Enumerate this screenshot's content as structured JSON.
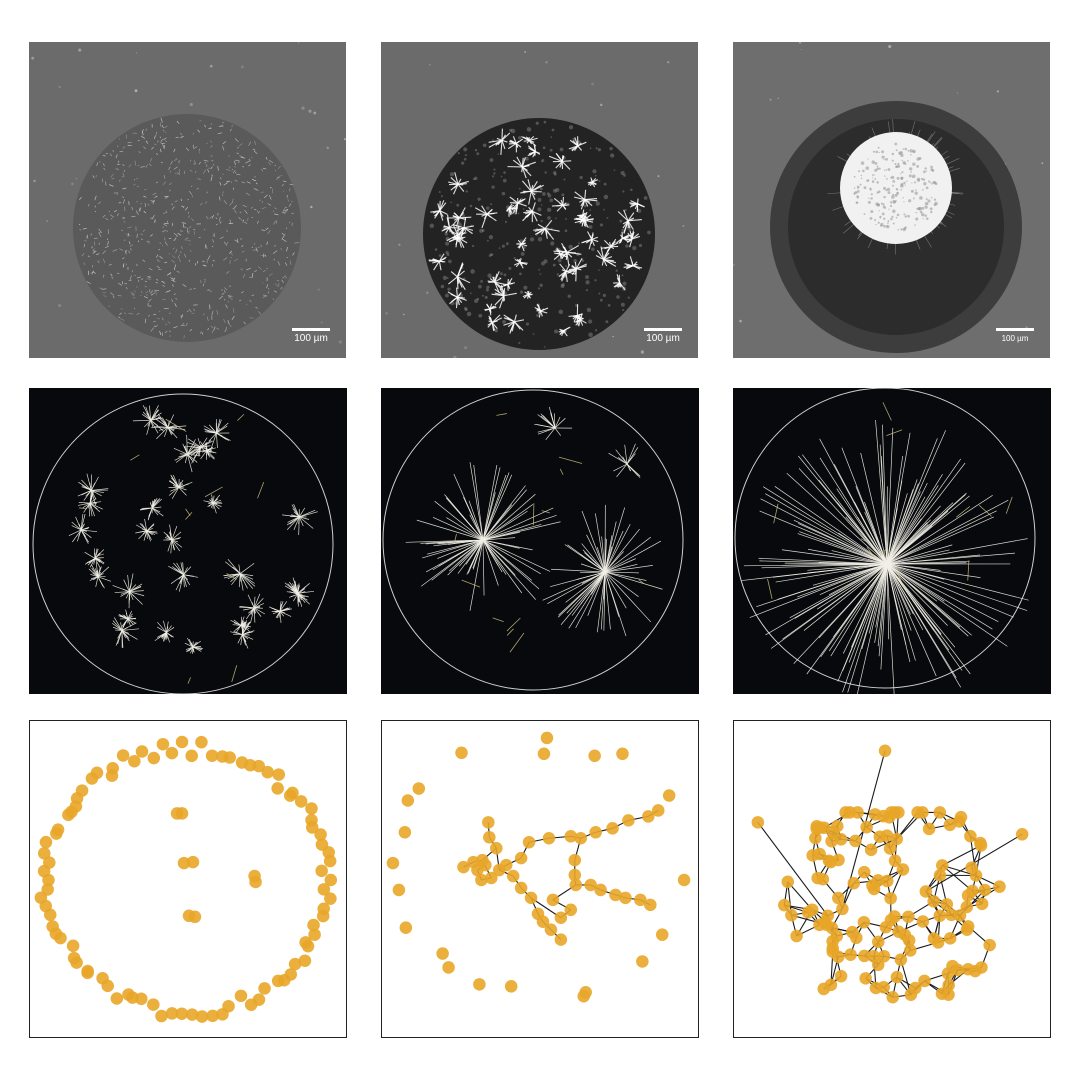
{
  "scale_bars": [
    "100 µm",
    "100 µm",
    "100 µm"
  ],
  "colors": {
    "micrograph_background": "#6b6b6b",
    "simulation_background": "#07090c",
    "node": "#e8a628",
    "edge": "#1a1a1a",
    "fiber": "#f2f0e6"
  }
}
